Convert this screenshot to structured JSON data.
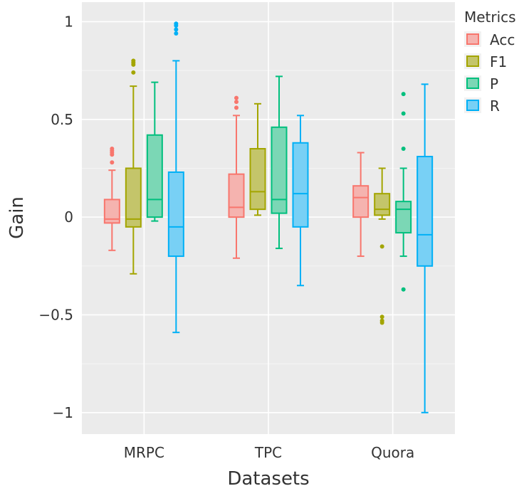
{
  "chart_data": {
    "type": "box",
    "xlabel": "Datasets",
    "ylabel": "Gain",
    "categories": [
      "MRPC",
      "TPC",
      "Quora"
    ],
    "ylim": [
      -1.11,
      1.1
    ],
    "yticks": [
      {
        "value": 1,
        "label": "1"
      },
      {
        "value": 0.5,
        "label": "0.5"
      },
      {
        "value": 0,
        "label": "0"
      },
      {
        "value": -0.5,
        "label": "−0.5"
      },
      {
        "value": -1,
        "label": "−1"
      }
    ],
    "grid": true,
    "legend": {
      "title": "Metrics",
      "position": "top-right"
    },
    "series": [
      {
        "name": "Acc",
        "color": "#F8766D",
        "fill": "#F5B3AF",
        "boxes": [
          {
            "category": "MRPC",
            "min": -0.17,
            "q1": -0.03,
            "median": -0.01,
            "q3": 0.09,
            "max": 0.24,
            "outliers": [
              0.28,
              0.32,
              0.33,
              0.34,
              0.35
            ]
          },
          {
            "category": "TPC",
            "min": -0.21,
            "q1": 0.0,
            "median": 0.05,
            "q3": 0.22,
            "max": 0.52,
            "outliers": [
              0.56,
              0.59,
              0.61
            ]
          },
          {
            "category": "Quora",
            "min": -0.2,
            "q1": 0.0,
            "median": 0.1,
            "q3": 0.16,
            "max": 0.33,
            "outliers": []
          }
        ]
      },
      {
        "name": "F1",
        "color": "#A3A500",
        "fill": "#C4C56A",
        "boxes": [
          {
            "category": "MRPC",
            "min": -0.29,
            "q1": -0.05,
            "median": -0.01,
            "q3": 0.25,
            "max": 0.67,
            "outliers": [
              0.74,
              0.78,
              0.79,
              0.8
            ]
          },
          {
            "category": "TPC",
            "min": 0.01,
            "q1": 0.04,
            "median": 0.13,
            "q3": 0.35,
            "max": 0.58,
            "outliers": []
          },
          {
            "category": "Quora",
            "min": -0.01,
            "q1": 0.01,
            "median": 0.04,
            "q3": 0.12,
            "max": 0.25,
            "outliers": [
              -0.15,
              -0.51,
              -0.53,
              -0.54
            ]
          }
        ]
      },
      {
        "name": "P",
        "color": "#00BF7D",
        "fill": "#7BD7B5",
        "boxes": [
          {
            "category": "MRPC",
            "min": -0.02,
            "q1": 0.0,
            "median": 0.09,
            "q3": 0.42,
            "max": 0.69,
            "outliers": []
          },
          {
            "category": "TPC",
            "min": -0.16,
            "q1": 0.02,
            "median": 0.09,
            "q3": 0.46,
            "max": 0.72,
            "outliers": []
          },
          {
            "category": "Quora",
            "min": -0.2,
            "q1": -0.08,
            "median": 0.04,
            "q3": 0.08,
            "max": 0.25,
            "outliers": [
              0.35,
              0.53,
              0.63,
              -0.37
            ]
          }
        ]
      },
      {
        "name": "R",
        "color": "#00B0F6",
        "fill": "#78D0F5",
        "boxes": [
          {
            "category": "MRPC",
            "min": -0.59,
            "q1": -0.2,
            "median": -0.05,
            "q3": 0.23,
            "max": 0.8,
            "outliers": [
              0.94,
              0.96,
              0.98,
              0.99
            ]
          },
          {
            "category": "TPC",
            "min": -0.35,
            "q1": -0.05,
            "median": 0.12,
            "q3": 0.38,
            "max": 0.52,
            "outliers": []
          },
          {
            "category": "Quora",
            "min": -1.0,
            "q1": -0.25,
            "median": -0.09,
            "q3": 0.31,
            "max": 0.68,
            "outliers": []
          }
        ]
      }
    ]
  }
}
